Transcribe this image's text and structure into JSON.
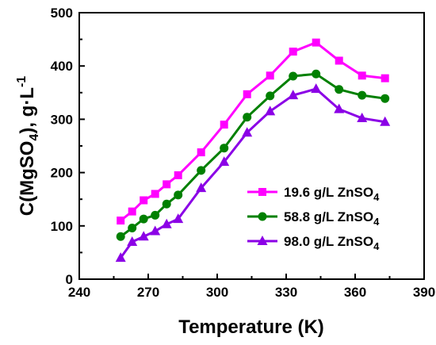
{
  "chart_data": {
    "type": "line",
    "xlabel": "Temperature (K)",
    "ylabel": {
      "prefix": "C(MgSO",
      "sub": "4",
      "suffix": "), g·L",
      "sup": "-1"
    },
    "xlim": [
      240,
      390
    ],
    "ylim": [
      0,
      500
    ],
    "xticks": [
      240,
      270,
      300,
      330,
      360,
      390
    ],
    "yticks": [
      0,
      100,
      200,
      300,
      400,
      500
    ],
    "grid": false,
    "legend_position": "bottom-right",
    "x": [
      258,
      263,
      268,
      273,
      278,
      283,
      293,
      303,
      313,
      323,
      333,
      343,
      353,
      363,
      373
    ],
    "series": [
      {
        "name": "19.6 g/L ZnSO",
        "name_sub": "4",
        "marker": "square",
        "color": "#ff00ff",
        "values": [
          110,
          127,
          148,
          160,
          178,
          195,
          238,
          290,
          347,
          382,
          427,
          444,
          410,
          382,
          377
        ]
      },
      {
        "name": "58.8 g/L ZnSO",
        "name_sub": "4",
        "marker": "circle",
        "color": "#008000",
        "values": [
          80,
          96,
          113,
          120,
          141,
          158,
          204,
          246,
          304,
          344,
          381,
          385,
          356,
          345,
          339
        ]
      },
      {
        "name": "98.0 g/L ZnSO",
        "name_sub": "4",
        "marker": "triangle",
        "color": "#8b00e6",
        "values": [
          40,
          70,
          80,
          90,
          103,
          113,
          171,
          220,
          275,
          315,
          345,
          357,
          319,
          302,
          295
        ]
      }
    ]
  }
}
